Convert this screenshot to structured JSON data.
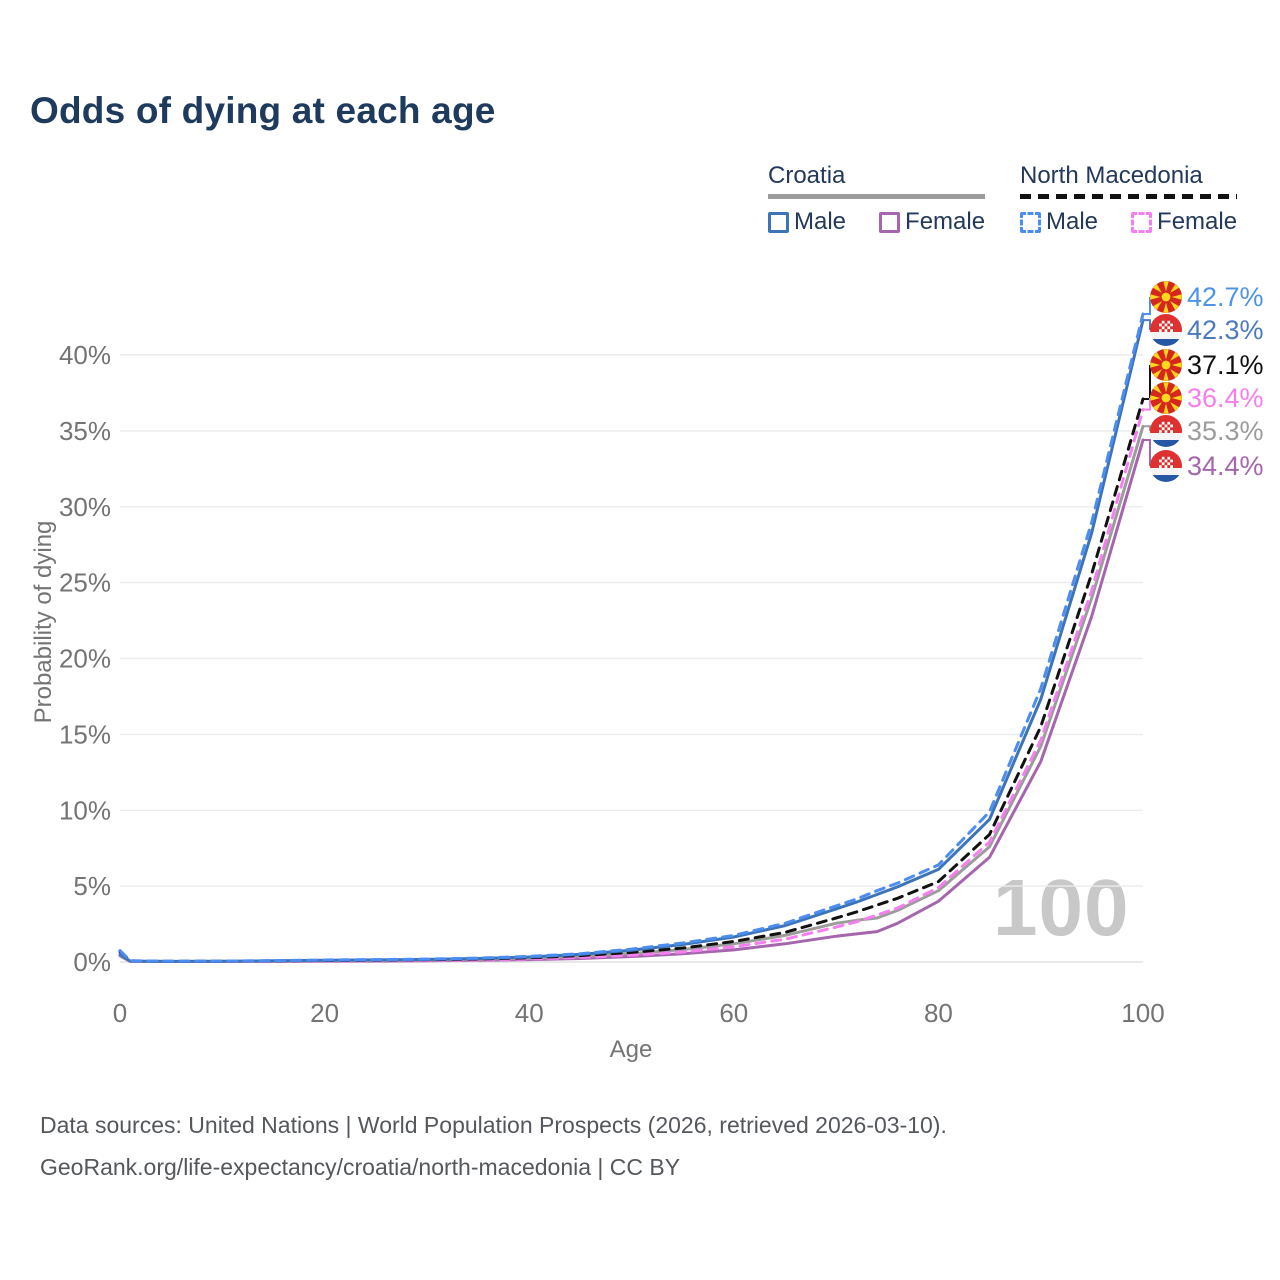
{
  "title": "Odds of dying at each age",
  "watermark": "100",
  "legend": {
    "croatia": {
      "label": "Croatia",
      "male": "Male",
      "female": "Female"
    },
    "north_macedonia": {
      "label": "North Macedonia",
      "male": "Male",
      "female": "Female"
    }
  },
  "footer": {
    "line1": "Data sources: United Nations | World Population Prospects (2026, retrieved 2026-03-10).",
    "line2": "GeoRank.org/life-expectancy/croatia/north-macedonia | CC BY"
  },
  "colors": {
    "title_text": "#1e3a5c",
    "legend_text": "#23395b",
    "croatia_male": "#3d74b8",
    "croatia_female": "#a566ad",
    "croatia_total": "#9c9c9c",
    "north_macedonia_male": "#4b8df0",
    "north_macedonia_female": "#f77ef0",
    "north_macedonia_total": "#111111",
    "gridline": "#ececec",
    "tick_text": "#747474",
    "watermark_text": "#c8c8c8"
  },
  "chart_data": {
    "type": "line",
    "title": "Odds of dying at each age",
    "xlabel": "Age",
    "ylabel": "Probability of dying",
    "xlim": [
      0,
      100
    ],
    "ylim": [
      0,
      44
    ],
    "xticks": [
      0,
      20,
      40,
      60,
      80,
      100
    ],
    "yticks": [
      "0%",
      "5%",
      "10%",
      "15%",
      "20%",
      "25%",
      "30%",
      "35%",
      "40%"
    ],
    "ytick_values": [
      0,
      5,
      10,
      15,
      20,
      25,
      30,
      35,
      40
    ],
    "grid": "horizontal",
    "legend_position": "top-right",
    "unit": "percent",
    "x": [
      0,
      1,
      5,
      10,
      15,
      20,
      25,
      30,
      35,
      40,
      45,
      50,
      55,
      60,
      65,
      70,
      72,
      74,
      76,
      80,
      85,
      90,
      95,
      100
    ],
    "series": [
      {
        "id": "croatia-female",
        "name": "Croatia Female",
        "country": "Croatia",
        "sex": "Female",
        "color": "#a566ad",
        "label_color": "#a566ad",
        "dashed": false,
        "flag": "croatia",
        "end_label": "34.4%",
        "values": [
          0.4,
          0.04,
          0.03,
          0.03,
          0.04,
          0.05,
          0.06,
          0.08,
          0.11,
          0.16,
          0.23,
          0.36,
          0.54,
          0.8,
          1.2,
          1.7,
          1.85,
          2.0,
          2.55,
          4.0,
          6.9,
          13.2,
          22.8,
          34.4
        ]
      },
      {
        "id": "croatia-total",
        "name": "Croatia Both sexes",
        "country": "Croatia",
        "sex": "Both",
        "color": "#9c9c9c",
        "label_color": "#9c9c9c",
        "dashed": false,
        "flag": "croatia",
        "end_label": "35.3%",
        "values": [
          0.45,
          0.05,
          0.03,
          0.04,
          0.06,
          0.08,
          0.1,
          0.13,
          0.17,
          0.24,
          0.36,
          0.55,
          0.82,
          1.2,
          1.75,
          2.55,
          2.75,
          2.9,
          3.4,
          4.7,
          7.6,
          14.2,
          24.0,
          35.3
        ]
      },
      {
        "id": "north-macedonia-female",
        "name": "North Macedonia Female",
        "country": "North Macedonia",
        "sex": "Female",
        "color": "#f77ef0",
        "label_color": "#f77ef0",
        "dashed": true,
        "flag": "north-macedonia",
        "end_label": "36.4%",
        "values": [
          0.65,
          0.06,
          0.04,
          0.04,
          0.05,
          0.07,
          0.08,
          0.1,
          0.14,
          0.2,
          0.3,
          0.45,
          0.66,
          1.0,
          1.5,
          2.3,
          2.65,
          3.1,
          3.55,
          4.9,
          7.9,
          14.6,
          24.5,
          36.4
        ]
      },
      {
        "id": "north-macedonia-total",
        "name": "North Macedonia Both sexes",
        "country": "North Macedonia",
        "sex": "Both",
        "color": "#111111",
        "label_color": "#111111",
        "dashed": true,
        "flag": "north-macedonia",
        "end_label": "37.1%",
        "values": [
          0.7,
          0.07,
          0.04,
          0.05,
          0.07,
          0.1,
          0.12,
          0.15,
          0.2,
          0.28,
          0.42,
          0.63,
          0.92,
          1.35,
          1.95,
          2.9,
          3.3,
          3.75,
          4.2,
          5.3,
          8.4,
          15.5,
          25.6,
          37.1
        ]
      },
      {
        "id": "croatia-male",
        "name": "Croatia Male",
        "country": "Croatia",
        "sex": "Male",
        "color": "#3d74b8",
        "label_color": "#4a7bbf",
        "dashed": false,
        "flag": "croatia",
        "end_label": "42.3%",
        "values": [
          0.5,
          0.06,
          0.04,
          0.05,
          0.08,
          0.11,
          0.14,
          0.17,
          0.23,
          0.33,
          0.5,
          0.78,
          1.15,
          1.65,
          2.4,
          3.5,
          3.95,
          4.45,
          4.95,
          6.1,
          9.4,
          17.3,
          28.3,
          42.3
        ]
      },
      {
        "id": "north-macedonia-male",
        "name": "North Macedonia Male",
        "country": "North Macedonia",
        "sex": "Male",
        "color": "#4b8df0",
        "label_color": "#4d94e8",
        "dashed": true,
        "flag": "north-macedonia",
        "end_label": "42.7%",
        "values": [
          0.75,
          0.08,
          0.05,
          0.06,
          0.09,
          0.13,
          0.16,
          0.19,
          0.26,
          0.37,
          0.55,
          0.85,
          1.25,
          1.75,
          2.55,
          3.7,
          4.15,
          4.7,
          5.2,
          6.4,
          9.9,
          18.0,
          29.0,
          42.7
        ]
      }
    ]
  }
}
